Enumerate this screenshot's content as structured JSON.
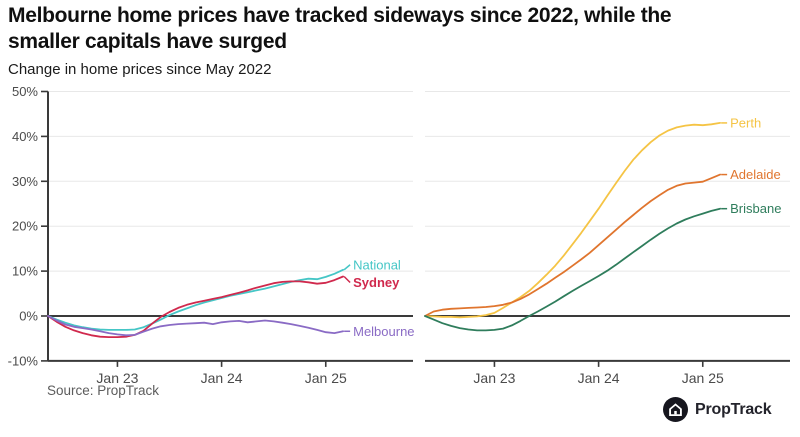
{
  "header": {
    "title_lines": [
      "Melbourne home prices have tracked sideways since 2022, while the",
      "smaller capitals have surged"
    ],
    "subtitle": "Change in home prices since May 2022"
  },
  "axis": {
    "y_tick_labels": [
      "50%",
      "40%",
      "30%",
      "20%",
      "10%",
      "0%",
      "-10%"
    ],
    "y_tick_values": [
      50,
      40,
      30,
      20,
      10,
      0,
      -10
    ],
    "x_tick_labels": [
      "Jan 23",
      "Jan 24",
      "Jan 25"
    ],
    "x_tick_month_indices": [
      8,
      20,
      32
    ]
  },
  "chart_data": [
    {
      "type": "line",
      "panel": "left",
      "x_start": "May 2022",
      "x_interval": "monthly",
      "x_ticks": [
        "Jan 23",
        "Jan 24",
        "Jan 25"
      ],
      "ylim": [
        -10,
        50
      ],
      "grid": "horizontal",
      "zero_baseline": true,
      "series": [
        {
          "name": "National",
          "color": "#45c6c6",
          "bold_label": false,
          "values": [
            0,
            -0.8,
            -1.5,
            -2.1,
            -2.5,
            -2.8,
            -3.0,
            -3.1,
            -3.1,
            -3.1,
            -3.0,
            -2.5,
            -1.7,
            -0.8,
            0.2,
            1.0,
            1.7,
            2.4,
            3.0,
            3.5,
            4.0,
            4.5,
            4.9,
            5.3,
            5.7,
            6.1,
            6.6,
            7.1,
            7.6,
            8.0,
            8.3,
            8.2,
            8.7,
            9.4,
            10.3
          ]
        },
        {
          "name": "Sydney",
          "color": "#d0294d",
          "bold_label": true,
          "values": [
            0,
            -1.3,
            -2.4,
            -3.2,
            -3.8,
            -4.3,
            -4.6,
            -4.7,
            -4.7,
            -4.6,
            -4.2,
            -3.3,
            -1.7,
            -0.2,
            0.9,
            1.8,
            2.5,
            3.0,
            3.4,
            3.8,
            4.2,
            4.7,
            5.2,
            5.7,
            6.3,
            6.8,
            7.3,
            7.6,
            7.7,
            7.7,
            7.5,
            7.2,
            7.4,
            8.0,
            8.8
          ]
        },
        {
          "name": "Melbourne",
          "color": "#8a6bc5",
          "bold_label": false,
          "values": [
            0,
            -1.0,
            -1.9,
            -2.4,
            -2.7,
            -3.0,
            -3.4,
            -3.8,
            -4.1,
            -4.3,
            -4.2,
            -3.5,
            -2.8,
            -2.3,
            -2.0,
            -1.8,
            -1.7,
            -1.6,
            -1.5,
            -1.8,
            -1.4,
            -1.2,
            -1.1,
            -1.4,
            -1.2,
            -1.0,
            -1.2,
            -1.5,
            -1.8,
            -2.2,
            -2.6,
            -3.1,
            -3.6,
            -3.8,
            -3.4
          ]
        }
      ]
    },
    {
      "type": "line",
      "panel": "right",
      "x_start": "May 2022",
      "x_interval": "monthly",
      "x_ticks": [
        "Jan 23",
        "Jan 24",
        "Jan 25"
      ],
      "ylim": [
        -10,
        50
      ],
      "grid": "horizontal",
      "zero_baseline": true,
      "series": [
        {
          "name": "Perth",
          "color": "#f5c445",
          "bold_label": false,
          "values": [
            0,
            -0.1,
            -0.2,
            -0.2,
            -0.3,
            -0.2,
            -0.1,
            0.2,
            0.7,
            1.8,
            3.0,
            4.2,
            5.6,
            7.3,
            9.2,
            11.2,
            13.5,
            16.0,
            18.5,
            21.2,
            23.9,
            26.8,
            29.6,
            32.3,
            34.8,
            36.9,
            38.7,
            40.2,
            41.3,
            42.0,
            42.4,
            42.6,
            42.5,
            42.7,
            43.0
          ]
        },
        {
          "name": "Adelaide",
          "color": "#e0752e",
          "bold_label": false,
          "values": [
            0,
            1.0,
            1.4,
            1.6,
            1.7,
            1.8,
            1.9,
            2.0,
            2.2,
            2.5,
            3.0,
            3.8,
            4.8,
            6.0,
            7.2,
            8.5,
            9.8,
            11.2,
            12.6,
            14.1,
            15.8,
            17.5,
            19.2,
            20.9,
            22.5,
            24.1,
            25.6,
            26.9,
            28.1,
            29.0,
            29.5,
            29.7,
            29.9,
            30.7,
            31.5
          ]
        },
        {
          "name": "Brisbane",
          "color": "#2f7d5c",
          "bold_label": false,
          "values": [
            0,
            -0.8,
            -1.6,
            -2.2,
            -2.7,
            -3.0,
            -3.2,
            -3.2,
            -3.1,
            -2.8,
            -2.1,
            -1.1,
            0.0,
            1.0,
            2.1,
            3.2,
            4.4,
            5.6,
            6.7,
            7.8,
            8.9,
            10.1,
            11.4,
            12.8,
            14.2,
            15.6,
            17.0,
            18.3,
            19.5,
            20.6,
            21.5,
            22.2,
            22.8,
            23.4,
            23.9
          ]
        }
      ]
    }
  ],
  "footer": {
    "source": "Source: PropTrack",
    "logo_text": "PropTrack"
  }
}
